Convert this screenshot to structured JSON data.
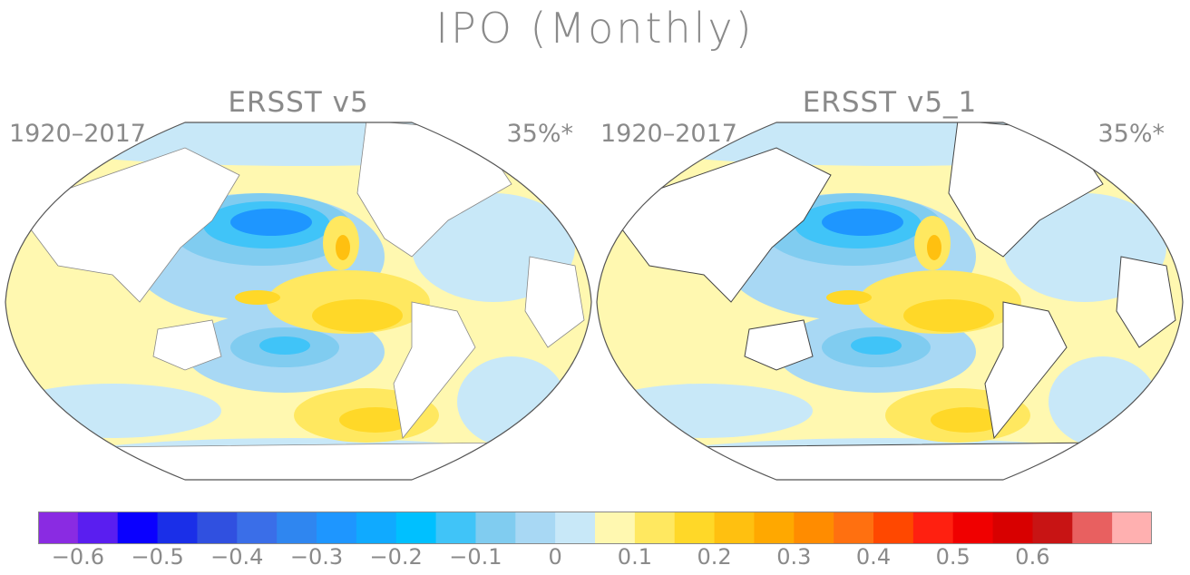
{
  "title": "IPO (Monthly)",
  "panels": [
    {
      "name": "ERSST v5",
      "period": "1920–2017",
      "variance": "35%*"
    },
    {
      "name": "ERSST v5_1",
      "period": "1920–2017",
      "variance": "35%*"
    }
  ],
  "colorbar": {
    "colors": [
      "#8a2be2",
      "#5a1ef0",
      "#0a00ff",
      "#1a2fe8",
      "#3050e0",
      "#3a6ee8",
      "#2f86f0",
      "#1e96ff",
      "#10aaff",
      "#00c0ff",
      "#40c4f8",
      "#80ccf0",
      "#a8d8f4",
      "#c8e8f8",
      "#fff8b0",
      "#ffe860",
      "#ffd828",
      "#ffc010",
      "#ffa800",
      "#ff8c00",
      "#ff7010",
      "#ff4800",
      "#ff2010",
      "#f00000",
      "#d80000",
      "#c81414",
      "#e86060",
      "#ffb0b0"
    ],
    "tick_labels": [
      "−0.6",
      "−0.5",
      "−0.4",
      "−0.3",
      "−0.2",
      "−0.1",
      "0",
      "0.1",
      "0.2",
      "0.3",
      "0.4",
      "0.5",
      "0.6"
    ],
    "tick_values": [
      -0.6,
      -0.5,
      -0.4,
      -0.3,
      -0.2,
      -0.1,
      0,
      0.1,
      0.2,
      0.3,
      0.4,
      0.5,
      0.6
    ]
  }
}
